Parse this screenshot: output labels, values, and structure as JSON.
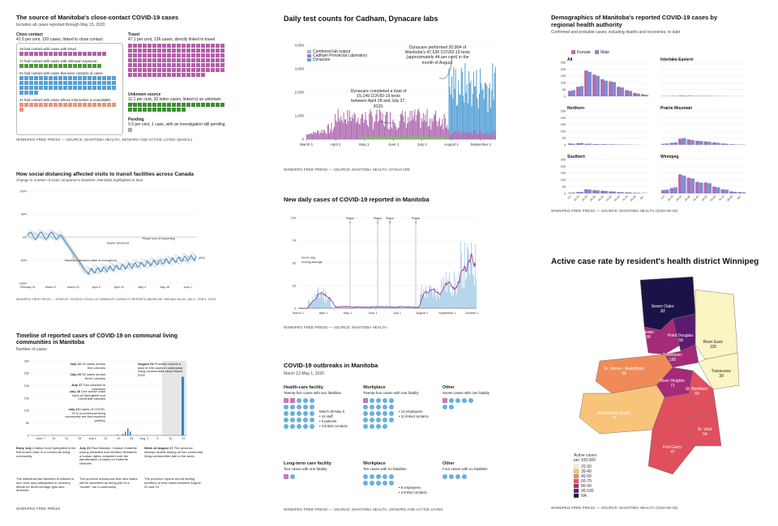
{
  "panel1": {
    "title": "The source of Manitoba's close-contact COVID-19 cases",
    "subtitle": "Includes all cases reported through May 15, 2020",
    "close_contact": {
      "title": "Close contact",
      "desc": "41.5 per cent, 120 cases, linked to close contact"
    },
    "rows": [
      {
        "label": "18 had contact with cases with travel",
        "count": 18,
        "color": "pink"
      },
      {
        "label": "17 had contact with cases with unknown exposure",
        "count": 17,
        "color": "green"
      },
      {
        "label": "64 had contact with cases that were contacts of cases",
        "count": 64,
        "color": "blue"
      },
      {
        "label": "21 had contact with cases whose information is unavailable",
        "count": 21,
        "color": "salmon"
      }
    ],
    "travel": {
      "title": "Travel",
      "desc": "47.1 per cent, 136 cases, directly linked to travel",
      "count": 136
    },
    "unknown": {
      "title": "Unknown source",
      "desc": "11.1 per cent, 32 index cases, linked to an unknown source",
      "count": 32
    },
    "pending": {
      "title": "Pending",
      "desc": "0.3 per cent, 1 case, with an investigation still pending",
      "count": 1
    },
    "source": "WINNIPEG FREE PRESS — SOURCE: MANITOBA HEALTH, SENIORS AND ACTIVE LIVING (MHSAL)"
  },
  "panel2": {
    "title": "Daily test counts for Cadham, Dynacare labs",
    "legend": [
      "Combined lab output",
      "Cadham Provincial Laboratory",
      "Dynacare"
    ],
    "colors": {
      "combined": "#9fb9c9",
      "cadham": "#b26fb2",
      "dynacare": "#5aa3d8"
    },
    "annot1": "Dynacare performed 20,904 of Manitoba's 47,636 COVID-19 tests (approximately 44 per cent) in the month of August.",
    "annot2": "Dynacare completed a total of 15,149 COVID-19 tests between April 28 and July 27, 2020.",
    "chart_data": {
      "type": "bar",
      "yticks": [
        "4,000",
        "3,000",
        "2,000",
        "1,000",
        "0"
      ],
      "xticks": [
        "March 1",
        "April 1",
        "May 1",
        "June 1",
        "July 1",
        "August 1",
        "September 1"
      ],
      "ylim": [
        0,
        4000
      ]
    },
    "source": "WINNIPEG FREE PRESS — SOURCE: MANITOBA HEALTH, DYNACARE"
  },
  "panel3": {
    "title": "Demographics of Manitoba's reported COVID-19 cases by regional health authority",
    "subtitle": "Confirmed and probable cases, including deaths and recoveries, to date",
    "legend": [
      "Female",
      "Male"
    ],
    "colors": {
      "female": "#b26fb2",
      "male": "#7d8fd4"
    },
    "regions": [
      "All",
      "Interlake-Eastern",
      "Northern",
      "Prairie Mountain",
      "Southern",
      "Winnipeg"
    ],
    "yticks": [
      "250",
      "200",
      "150",
      "100",
      "50",
      "0"
    ],
    "xticks": [
      "0-9",
      "10-19",
      "20-29",
      "30-39",
      "40-49",
      "50-59",
      "60-69",
      "70-79",
      "80-89",
      "90+"
    ],
    "chart_data": {
      "type": "bar",
      "categories": [
        "0-9",
        "10-19",
        "20-29",
        "30-39",
        "40-49",
        "50-59",
        "60-69",
        "70-79",
        "80-89",
        "90+"
      ],
      "series": [
        {
          "region": "All",
          "female": [
            40,
            70,
            190,
            160,
            125,
            110,
            70,
            45,
            25,
            15
          ],
          "male": [
            45,
            75,
            180,
            150,
            115,
            105,
            65,
            40,
            20,
            10
          ]
        },
        {
          "region": "Interlake-Eastern",
          "female": [
            2,
            3,
            5,
            4,
            3,
            3,
            2,
            2,
            1,
            1
          ],
          "male": [
            2,
            3,
            5,
            4,
            3,
            3,
            2,
            1,
            1,
            0
          ]
        },
        {
          "region": "Northern",
          "female": [
            10,
            12,
            8,
            6,
            5,
            4,
            3,
            2,
            1,
            0
          ],
          "male": [
            8,
            14,
            9,
            6,
            5,
            4,
            3,
            2,
            1,
            0
          ]
        },
        {
          "region": "Prairie Mountain",
          "female": [
            8,
            15,
            45,
            40,
            30,
            25,
            18,
            10,
            5,
            3
          ],
          "male": [
            10,
            18,
            50,
            35,
            28,
            22,
            15,
            8,
            4,
            2
          ]
        },
        {
          "region": "Southern",
          "female": [
            5,
            10,
            30,
            25,
            20,
            15,
            10,
            8,
            5,
            3
          ],
          "male": [
            6,
            12,
            28,
            22,
            18,
            14,
            9,
            7,
            4,
            2
          ]
        },
        {
          "region": "Winnipeg",
          "female": [
            25,
            40,
            140,
            115,
            85,
            80,
            50,
            30,
            15,
            10
          ],
          "male": [
            28,
            45,
            130,
            110,
            80,
            75,
            45,
            28,
            12,
            8
          ]
        }
      ]
    },
    "source": "WINNIPEG FREE PRESS — SOURCE: MANITOBA HEALTH (2020-09-28)"
  },
  "panel4": {
    "title": "How social distancing affected visits to transit facilities across Canada",
    "subtitle": "Change in number of visits compared to baseline. Manitoba highlighted in blue.",
    "annotations": [
      "Easter weekend",
      "Phase one of reopening",
      "Manitoba declares state of emergency",
      "-45%"
    ],
    "chart_data": {
      "type": "line",
      "yticks": [
        "100%",
        "50%",
        "0%",
        "-50%",
        "-100%"
      ],
      "xticks": [
        "February 24",
        "March 9",
        "March 23",
        "April 6",
        "April 20",
        "May 4",
        "May 18",
        "June 1"
      ],
      "ylim": [
        -100,
        100
      ]
    },
    "source": "WINNIPEG FREE PRESS — SOURCE: GOOGLE COVID-19 COMMUNITY MOBILITY REPORTS (BASELINE: MEDIAN VALUE JAN 3 - FEB 6, 2020)"
  },
  "panel5": {
    "title": "New daily cases of COVID-19 reported in Manitoba",
    "phases": [
      "Phase 1",
      "Phase 2",
      "Phase 3",
      "Phase 4"
    ],
    "avg_label": "Seven-day moving average",
    "chart_data": {
      "type": "bar",
      "yticks": [
        "100",
        "75",
        "50",
        "25",
        "0"
      ],
      "xticks": [
        "March 1",
        "April 1",
        "May 1",
        "June 1",
        "July 1",
        "August 1",
        "September 1",
        "October 1"
      ],
      "ylim": [
        0,
        100
      ]
    },
    "source": "WINNIPEG FREE PRESS — SOURCE: MANITOBA HEALTH"
  },
  "panel6": {
    "title": "Active case rate by resident's health district Winnipeg",
    "districts": [
      {
        "name": "Seven Oaks:",
        "value": "82"
      },
      {
        "name": "River East:",
        "value": "105"
      },
      {
        "name": "Inkster:",
        "value": "58"
      },
      {
        "name": "Point Douglas:",
        "value": "58"
      },
      {
        "name": "Downtown:",
        "value": "156"
      },
      {
        "name": "Transcona:",
        "value": "39"
      },
      {
        "name": "St. James - Assiniboia:",
        "value": "36"
      },
      {
        "name": "River Heights:",
        "value": "71"
      },
      {
        "name": "St. Boniface:",
        "value": "69"
      },
      {
        "name": "Assiniboine South:",
        "value": "74"
      },
      {
        "name": "St. Vital:",
        "value": "64"
      },
      {
        "name": "Fort Garry:",
        "value": "47"
      }
    ],
    "legend_title": "Active cases per 100,000",
    "legend": [
      {
        "label": "20-30",
        "color": "#fbf5c3"
      },
      {
        "label": "30-40",
        "color": "#f8c47a"
      },
      {
        "label": "40-50",
        "color": "#f08b59"
      },
      {
        "label": "60-70",
        "color": "#df4f5e"
      },
      {
        "label": "80-90",
        "color": "#a52a78"
      },
      {
        "label": "90-100",
        "color": "#5c1b70"
      },
      {
        "label": "NA",
        "color": "#1d1248"
      }
    ],
    "source": "WINNIPEG FREE PRESS — SOURCE: MANITOBA HEALTH (2020-09-28)"
  },
  "panel7": {
    "title": "Timeline of reported cases of COVID-19 on communal living communities in Manitoba",
    "subtitle": "Number of cases",
    "events": [
      {
        "date": "July 22",
        "text": "15 cases across five colonies"
      },
      {
        "date": "July 20",
        "text": "28 cases across three colonies"
      },
      {
        "date": "July 17",
        "text": "Two colonies in lockdown"
      },
      {
        "date": "July 16",
        "text": "One known case each at Springfield and Cloverleaf colonies"
      },
      {
        "date": "July 13",
        "text": "Cases of COVID-19 in a communal living community are first reported publicly"
      }
    ],
    "aug": {
      "date": "August 24",
      "text": "Province reports a total of 236 cases in communal living communities since March 2020"
    },
    "xticks": [
      "June 7",
      "'14",
      "'21",
      "'28",
      "July 5",
      "'12",
      "'19",
      "'26",
      "Aug. 2",
      "'9",
      "'16",
      "'23"
    ],
    "yticks": [
      "300",
      "250",
      "200",
      "150",
      "100",
      "50",
      "0"
    ],
    "notes": [
      {
        "date": "Early July",
        "text": "A father from Springfield is the first known case in a communal living community."
      },
      {
        "date": "July 23",
        "text": "Paul Waldner, Candon Hutterite colony president and minister, threatens a human rights complaint over the identification of cases on Hutterite colonies."
      },
      {
        "date": "Week of August 17",
        "text": "The province deploys mobile testing on two communal living communities late in the week."
      }
    ],
    "note_extra": [
      "The individual had travelled to Alberta in mid-June and participated in recovery efforts for three teenage girls who drowned.",
      "The province announces that new cases will be described as being part of a \"cluster\" not a community.",
      "The province reports record setting numbers of new cases between August 22 and 24."
    ],
    "source": "WINNIPEG FREE PRESS"
  },
  "panel8": {
    "title": "COVID-19 outbreaks in Manitoba",
    "subtitle": "March 12-May 1, 2020",
    "groups": [
      {
        "title": "Health-care facility",
        "desc": "Twenty-five cases with two fatalities",
        "notes": [
          "March 30-May 8",
          "• 16 staff",
          "• 5 patients",
          "• 4 linked contacts"
        ]
      },
      {
        "title": "Workplace",
        "desc": "Twenty-four cases with one fatality",
        "notes": [
          "• 13 employees",
          "• 11 linked contacts"
        ]
      },
      {
        "title": "Other",
        "desc": "Seven cases with one fatality",
        "notes": []
      },
      {
        "title": "Long-term care facility",
        "desc": "Two cases with one fatality",
        "notes": []
      },
      {
        "title": "Workplace",
        "desc": "Ten cases with no fatalities",
        "notes": [
          "• 6 employees",
          "• 4 linked contacts"
        ]
      },
      {
        "title": "Other",
        "desc": "Four cases with no fatalities",
        "notes": []
      }
    ],
    "source": "WINNIPEG FREE PRESS — SOURCE: MANITOBA HEALTH, SENIORS AND ACTIVE LIVING"
  }
}
